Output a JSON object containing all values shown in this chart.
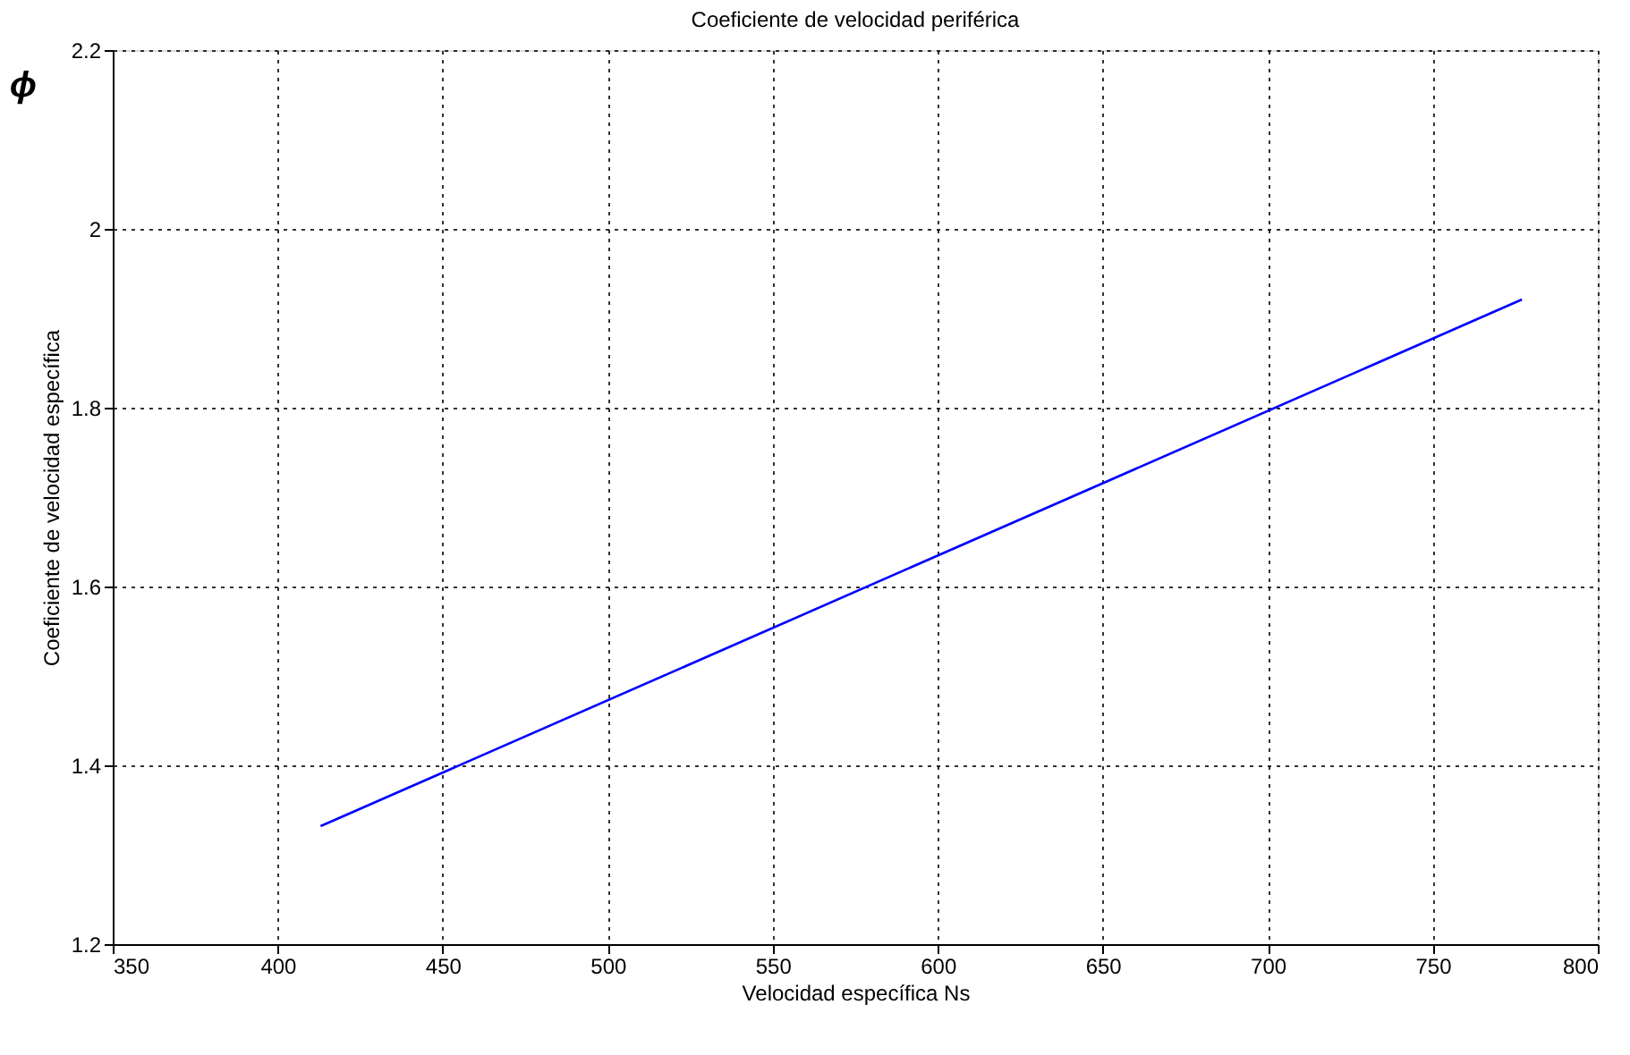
{
  "chart_data": {
    "type": "line",
    "title": "Coeficiente de velocidad periférica",
    "xlabel": "Velocidad específica Ns",
    "ylabel": "Coeficiente de velocidad específica",
    "annotations": [
      "ϕ"
    ],
    "x": [
      413,
      777
    ],
    "series": [
      {
        "color": "#0000ff",
        "values": [
          1.332,
          1.921
        ]
      }
    ],
    "xlim": [
      350,
      800
    ],
    "xticks": [
      350,
      400,
      450,
      500,
      550,
      600,
      650,
      700,
      750,
      800
    ],
    "ylim": [
      1.2,
      2.2
    ],
    "yticks": [
      1.2,
      1.4,
      1.6,
      1.8,
      2,
      2.2
    ],
    "grid": true,
    "legend": false,
    "line_style": "solid",
    "marker": "none"
  }
}
